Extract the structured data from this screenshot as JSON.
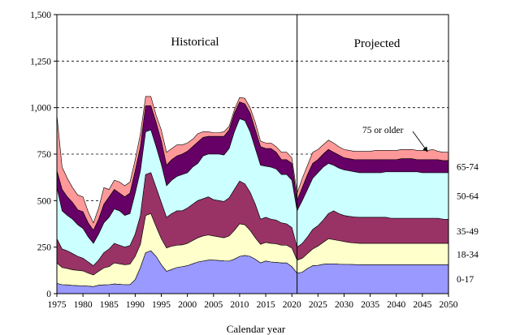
{
  "chart_data": {
    "type": "area",
    "stacked": true,
    "title": "",
    "xlabel": "Calendar year",
    "ylabel": "",
    "xlim": [
      1975,
      2050
    ],
    "ylim": [
      0,
      1500
    ],
    "x_ticks": [
      1975,
      1980,
      1985,
      1990,
      1995,
      2000,
      2005,
      2010,
      2015,
      2020,
      2025,
      2030,
      2035,
      2040,
      2045,
      2050
    ],
    "y_ticks": [
      0,
      250,
      500,
      750,
      1000,
      1250,
      1500
    ],
    "y_tick_labels": [
      "0",
      "250",
      "500",
      "750",
      "1,000",
      "1,250",
      "1,500"
    ],
    "grid": "horizontal dashed",
    "divider_year": 2021,
    "period_labels": {
      "historical": "Historical",
      "projected": "Projected"
    },
    "x": [
      1975,
      1976,
      1977,
      1978,
      1979,
      1980,
      1981,
      1982,
      1983,
      1984,
      1985,
      1986,
      1987,
      1988,
      1989,
      1990,
      1991,
      1992,
      1993,
      1994,
      1995,
      1996,
      1997,
      1998,
      1999,
      2000,
      2001,
      2002,
      2003,
      2004,
      2005,
      2006,
      2007,
      2008,
      2009,
      2010,
      2011,
      2012,
      2013,
      2014,
      2015,
      2016,
      2017,
      2018,
      2019,
      2020,
      2021,
      2022,
      2023,
      2024,
      2025,
      2026,
      2027,
      2028,
      2029,
      2030,
      2031,
      2032,
      2033,
      2034,
      2035,
      2036,
      2037,
      2038,
      2039,
      2040,
      2041,
      2042,
      2043,
      2044,
      2045,
      2046,
      2047,
      2048,
      2049,
      2050
    ],
    "series": [
      {
        "name": "0-17",
        "color": "#9999ff",
        "values": [
          55,
          48,
          47,
          44,
          43,
          42,
          40,
          38,
          45,
          47,
          48,
          52,
          50,
          48,
          48,
          75,
          140,
          220,
          230,
          200,
          155,
          120,
          130,
          140,
          145,
          150,
          160,
          170,
          175,
          180,
          180,
          178,
          176,
          175,
          185,
          200,
          205,
          200,
          185,
          165,
          175,
          170,
          168,
          165,
          165,
          145,
          110,
          115,
          135,
          150,
          152,
          158,
          160,
          160,
          158,
          157,
          157,
          156,
          155,
          155,
          155,
          155,
          155,
          155,
          155,
          155,
          155,
          155,
          155,
          155,
          155,
          155,
          155,
          155,
          155,
          155
        ]
      },
      {
        "name": "18-34",
        "color": "#ffffcc",
        "values": [
          165,
          140,
          135,
          128,
          125,
          122,
          110,
          100,
          120,
          138,
          145,
          165,
          160,
          155,
          158,
          200,
          265,
          420,
          430,
          360,
          295,
          245,
          255,
          260,
          262,
          270,
          285,
          300,
          310,
          315,
          310,
          305,
          300,
          310,
          340,
          375,
          370,
          340,
          300,
          265,
          275,
          270,
          268,
          260,
          260,
          245,
          180,
          190,
          215,
          240,
          255,
          275,
          295,
          290,
          285,
          280,
          275,
          272,
          270,
          270,
          270,
          270,
          270,
          270,
          270,
          270,
          270,
          270,
          270,
          270,
          270,
          270,
          270,
          270,
          270,
          270
        ]
      },
      {
        "name": "35-49",
        "color": "#993366",
        "values": [
          295,
          240,
          230,
          215,
          200,
          190,
          170,
          150,
          180,
          220,
          240,
          270,
          260,
          250,
          258,
          320,
          420,
          640,
          650,
          570,
          490,
          410,
          430,
          445,
          445,
          460,
          480,
          500,
          510,
          520,
          505,
          500,
          495,
          515,
          560,
          605,
          590,
          545,
          480,
          400,
          410,
          400,
          395,
          380,
          375,
          355,
          250,
          270,
          305,
          345,
          365,
          395,
          430,
          445,
          430,
          420,
          415,
          412,
          410,
          410,
          410,
          410,
          410,
          410,
          405,
          405,
          405,
          405,
          405,
          405,
          405,
          405,
          405,
          405,
          400,
          400
        ]
      },
      {
        "name": "50-64",
        "color": "#ccffff",
        "values": [
          570,
          445,
          420,
          400,
          370,
          350,
          305,
          270,
          320,
          380,
          410,
          455,
          445,
          420,
          430,
          540,
          660,
          870,
          880,
          790,
          695,
          580,
          610,
          630,
          640,
          650,
          680,
          700,
          740,
          750,
          750,
          750,
          745,
          780,
          870,
          940,
          930,
          870,
          780,
          690,
          685,
          680,
          670,
          640,
          640,
          610,
          445,
          500,
          560,
          620,
          650,
          680,
          700,
          690,
          675,
          665,
          660,
          655,
          650,
          650,
          650,
          650,
          650,
          655,
          655,
          655,
          655,
          655,
          655,
          655,
          650,
          650,
          650,
          650,
          650,
          650
        ]
      },
      {
        "name": "65-74",
        "color": "#660066",
        "values": [
          660,
          560,
          520,
          490,
          450,
          440,
          380,
          340,
          400,
          480,
          520,
          560,
          540,
          520,
          540,
          660,
          790,
          1010,
          1010,
          920,
          820,
          690,
          720,
          740,
          750,
          765,
          790,
          815,
          840,
          845,
          845,
          845,
          845,
          880,
          970,
          1030,
          1020,
          970,
          880,
          790,
          780,
          780,
          760,
          720,
          720,
          700,
          500,
          570,
          640,
          700,
          720,
          750,
          775,
          760,
          745,
          730,
          725,
          720,
          720,
          720,
          720,
          720,
          720,
          720,
          720,
          720,
          725,
          725,
          725,
          720,
          720,
          720,
          720,
          720,
          715,
          715
        ]
      },
      {
        "name": "75 or older",
        "color": "#ff9999",
        "values": [
          960,
          680,
          620,
          570,
          530,
          520,
          440,
          380,
          460,
          570,
          560,
          610,
          600,
          580,
          600,
          720,
          860,
          1060,
          1060,
          960,
          880,
          760,
          780,
          800,
          800,
          810,
          830,
          860,
          870,
          870,
          865,
          865,
          870,
          900,
          990,
          1055,
          1050,
          1000,
          920,
          820,
          810,
          810,
          790,
          760,
          760,
          730,
          540,
          620,
          690,
          760,
          775,
          800,
          825,
          810,
          790,
          775,
          770,
          765,
          765,
          765,
          765,
          770,
          770,
          770,
          770,
          770,
          775,
          775,
          775,
          770,
          770,
          770,
          775,
          765,
          760,
          760
        ]
      }
    ],
    "band_labels": [
      "0-17",
      "18-34",
      "35-49",
      "50-64",
      "65-74"
    ],
    "annotation": {
      "text": "75 or older",
      "arrow_to_year": 2046,
      "arrow_to_value": 762
    }
  }
}
